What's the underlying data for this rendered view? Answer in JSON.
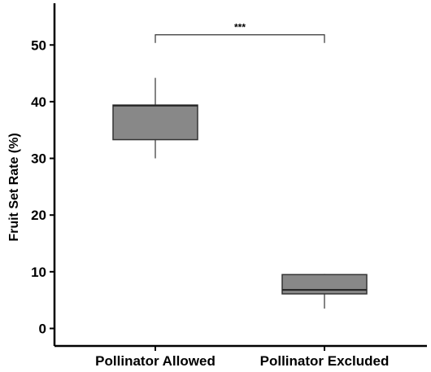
{
  "chart_data": {
    "type": "box",
    "ylabel": "Fruit Set Rate (%)",
    "xlabel": "",
    "ylim": [
      -2,
      57
    ],
    "yticks": [
      0,
      10,
      20,
      30,
      40,
      50
    ],
    "categories": [
      "Pollinator Allowed",
      "Pollinator Excluded"
    ],
    "boxes": [
      {
        "category": "Pollinator Allowed",
        "min": 30,
        "q1": 33.3,
        "median": 39.3,
        "q3": 39.4,
        "max": 44.2
      },
      {
        "category": "Pollinator Excluded",
        "min": 3.5,
        "q1": 6.1,
        "median": 6.8,
        "q3": 9.5,
        "max": 9.6
      }
    ],
    "significance": {
      "label": "***",
      "between": [
        "Pollinator Allowed",
        "Pollinator Excluded"
      ],
      "y": 51.8
    },
    "colors": {
      "box_fill": "#888888",
      "box_stroke": "#333333",
      "axis": "#000000"
    },
    "grid": false,
    "legend": "none"
  }
}
